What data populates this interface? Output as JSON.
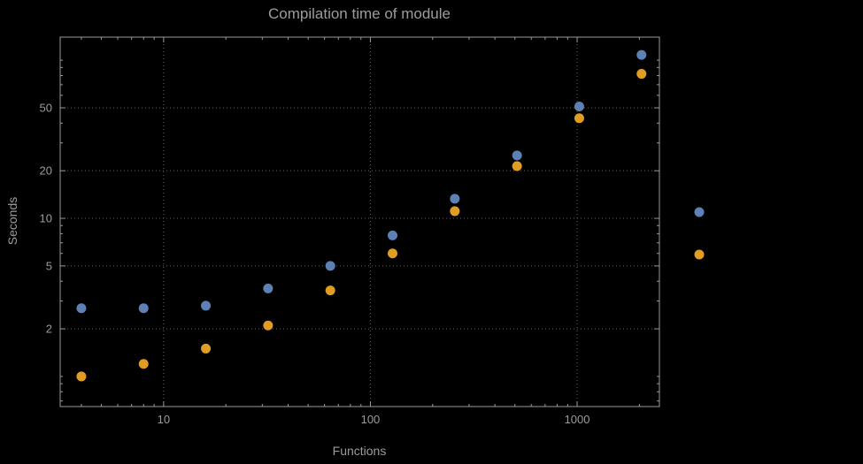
{
  "chart_data": {
    "type": "scatter",
    "title": "Compilation time of module",
    "xlabel": "Functions",
    "ylabel": "Seconds",
    "x_scale": "log",
    "y_scale": "log",
    "xlim": [
      3.16,
      2500
    ],
    "ylim": [
      0.645,
      140
    ],
    "x_ticks": [
      10,
      100,
      1000
    ],
    "y_ticks": [
      2,
      5,
      10,
      20,
      50
    ],
    "grid": "dotted",
    "legend_position": "right-of-frame",
    "series": [
      {
        "name": "blue",
        "color": "#5e81b5",
        "x": [
          4,
          8,
          16,
          32,
          64,
          128,
          256,
          512,
          1024,
          2048
        ],
        "y": [
          2.7,
          2.7,
          2.8,
          3.6,
          5.0,
          7.8,
          13.3,
          25,
          51,
          108
        ]
      },
      {
        "name": "orange",
        "color": "#e19c24",
        "x": [
          4,
          8,
          16,
          32,
          64,
          128,
          256,
          512,
          1024,
          2048
        ],
        "y": [
          1.0,
          1.2,
          1.5,
          2.1,
          3.5,
          6.0,
          11.1,
          21.4,
          43,
          82
        ]
      }
    ]
  },
  "colors": {
    "background": "#000000",
    "frame": "#9a9a9a",
    "grid": "#5f5f5f",
    "text": "#9c9c9c",
    "series_blue": "#5e81b5",
    "series_orange": "#e19c24"
  }
}
